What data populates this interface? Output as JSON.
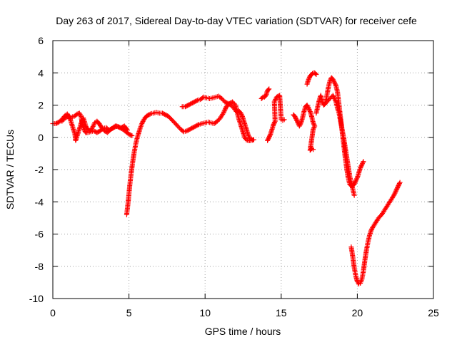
{
  "chart_data": {
    "type": "scatter",
    "title": "Day 263 of 2017, Sidereal Day-to-day VTEC variation (SDTVAR) for receiver cefe",
    "xlabel": "GPS time / hours",
    "ylabel": "SDTVAR / TECUs",
    "xlim": [
      0,
      25
    ],
    "ylim": [
      -10,
      6
    ],
    "xticks": [
      "0",
      "5",
      "10",
      "15",
      "20",
      "25"
    ],
    "yticks": [
      "-10",
      "-8",
      "-6",
      "-4",
      "-2",
      "0",
      "2",
      "4",
      "6"
    ],
    "grid": true,
    "marker": "+",
    "color": "#ff0000",
    "series": [
      {
        "points": [
          [
            0.0,
            0.85
          ],
          [
            0.2,
            0.85
          ],
          [
            0.4,
            0.95
          ],
          [
            0.6,
            1.1
          ],
          [
            0.8,
            1.35
          ],
          [
            0.95,
            1.45
          ],
          [
            1.05,
            1.3
          ],
          [
            1.15,
            1.1
          ],
          [
            1.25,
            0.8
          ],
          [
            1.35,
            0.5
          ],
          [
            1.45,
            0.2
          ],
          [
            1.5,
            -0.2
          ],
          [
            1.6,
            0.1
          ],
          [
            1.7,
            0.4
          ],
          [
            1.8,
            0.7
          ],
          [
            1.9,
            1.0
          ],
          [
            2.0,
            1.2
          ],
          [
            2.1,
            0.9
          ],
          [
            2.2,
            0.6
          ],
          [
            2.3,
            0.5
          ],
          [
            2.45,
            0.4
          ],
          [
            2.6,
            0.6
          ],
          [
            2.75,
            0.9
          ],
          [
            2.9,
            1.0
          ],
          [
            3.05,
            0.85
          ],
          [
            3.2,
            0.6
          ],
          [
            3.4,
            0.4
          ],
          [
            3.6,
            0.3
          ],
          [
            3.8,
            0.5
          ],
          [
            4.0,
            0.6
          ],
          [
            4.2,
            0.7
          ],
          [
            4.4,
            0.6
          ],
          [
            4.6,
            0.5
          ],
          [
            4.8,
            0.35
          ],
          [
            5.0,
            0.2
          ],
          [
            5.2,
            0.1
          ],
          [
            0.6,
            1.0
          ],
          [
            0.8,
            1.2
          ],
          [
            1.0,
            1.3
          ],
          [
            1.2,
            1.25
          ],
          [
            1.4,
            1.3
          ],
          [
            1.6,
            1.45
          ],
          [
            1.75,
            1.5
          ],
          [
            1.85,
            1.3
          ],
          [
            1.95,
            0.8
          ],
          [
            2.05,
            0.5
          ],
          [
            2.15,
            0.3
          ],
          [
            2.3,
            0.3
          ],
          [
            2.5,
            0.35
          ],
          [
            2.7,
            0.4
          ],
          [
            2.9,
            0.3
          ],
          [
            3.1,
            0.4
          ],
          [
            3.3,
            0.55
          ],
          [
            3.5,
            0.6
          ],
          [
            3.7,
            0.45
          ],
          [
            3.9,
            0.55
          ],
          [
            4.1,
            0.7
          ],
          [
            4.3,
            0.65
          ],
          [
            4.5,
            0.6
          ],
          [
            4.7,
            0.7
          ],
          [
            4.9,
            0.45
          ]
        ]
      },
      {
        "points": [
          [
            4.85,
            -4.8
          ],
          [
            4.95,
            -4.0
          ],
          [
            5.05,
            -3.0
          ],
          [
            5.15,
            -2.2
          ],
          [
            5.25,
            -1.5
          ],
          [
            5.35,
            -0.9
          ],
          [
            5.45,
            -0.4
          ],
          [
            5.55,
            0.0
          ],
          [
            5.65,
            0.3
          ],
          [
            5.75,
            0.6
          ],
          [
            5.85,
            0.85
          ],
          [
            5.95,
            1.05
          ],
          [
            6.05,
            1.2
          ],
          [
            6.2,
            1.35
          ],
          [
            6.4,
            1.45
          ],
          [
            6.6,
            1.5
          ],
          [
            6.8,
            1.55
          ],
          [
            7.0,
            1.5
          ],
          [
            7.2,
            1.5
          ],
          [
            7.4,
            1.4
          ],
          [
            7.6,
            1.3
          ],
          [
            7.8,
            1.1
          ],
          [
            8.0,
            0.9
          ],
          [
            8.2,
            0.7
          ],
          [
            8.4,
            0.5
          ],
          [
            8.6,
            0.35
          ],
          [
            8.8,
            0.4
          ],
          [
            9.0,
            0.5
          ],
          [
            9.2,
            0.6
          ],
          [
            9.4,
            0.7
          ],
          [
            9.6,
            0.8
          ],
          [
            9.8,
            0.85
          ],
          [
            10.0,
            0.9
          ],
          [
            10.2,
            0.95
          ],
          [
            10.4,
            0.9
          ],
          [
            10.6,
            0.85
          ],
          [
            10.8,
            1.0
          ],
          [
            11.0,
            1.2
          ],
          [
            11.2,
            1.5
          ],
          [
            11.4,
            1.9
          ],
          [
            11.6,
            2.1
          ],
          [
            11.8,
            2.2
          ],
          [
            12.0,
            2.0
          ],
          [
            12.1,
            1.6
          ],
          [
            12.2,
            1.2
          ],
          [
            12.3,
            0.9
          ],
          [
            12.4,
            0.6
          ],
          [
            12.5,
            0.3
          ],
          [
            12.6,
            0.0
          ],
          [
            12.7,
            -0.15
          ],
          [
            12.85,
            -0.2
          ],
          [
            13.0,
            -0.2
          ],
          [
            13.2,
            -0.15
          ]
        ]
      },
      {
        "points": [
          [
            8.5,
            1.9
          ],
          [
            8.7,
            1.9
          ],
          [
            8.9,
            2.0
          ],
          [
            9.1,
            2.1
          ],
          [
            9.3,
            2.2
          ],
          [
            9.5,
            2.3
          ],
          [
            9.7,
            2.35
          ],
          [
            9.9,
            2.5
          ],
          [
            10.1,
            2.45
          ],
          [
            10.3,
            2.4
          ],
          [
            10.5,
            2.45
          ],
          [
            10.7,
            2.5
          ],
          [
            10.9,
            2.55
          ],
          [
            11.1,
            2.4
          ],
          [
            11.3,
            2.2
          ],
          [
            11.5,
            2.1
          ],
          [
            11.7,
            2.0
          ],
          [
            11.9,
            1.8
          ],
          [
            12.05,
            1.6
          ],
          [
            12.2,
            1.65
          ],
          [
            12.35,
            1.5
          ],
          [
            12.45,
            1.3
          ],
          [
            12.55,
            1.0
          ],
          [
            12.65,
            0.7
          ],
          [
            12.75,
            0.4
          ],
          [
            12.85,
            0.1
          ],
          [
            12.95,
            -0.05
          ],
          [
            13.05,
            -0.1
          ],
          [
            13.15,
            -0.15
          ]
        ]
      },
      {
        "points": [
          [
            13.7,
            2.4
          ],
          [
            13.8,
            2.5
          ],
          [
            13.9,
            2.5
          ],
          [
            14.0,
            2.6
          ],
          [
            14.1,
            2.9
          ],
          [
            14.2,
            3.0
          ],
          [
            14.1,
            -0.2
          ],
          [
            14.2,
            0.0
          ],
          [
            14.3,
            0.2
          ],
          [
            14.4,
            0.5
          ],
          [
            14.5,
            0.8
          ],
          [
            14.6,
            1.0
          ],
          [
            14.55,
            2.2
          ],
          [
            14.7,
            2.5
          ],
          [
            14.9,
            2.6
          ],
          [
            15.0,
            1.1
          ],
          [
            15.1,
            1.05
          ],
          [
            15.2,
            1.1
          ]
        ]
      },
      {
        "points": [
          [
            15.8,
            1.4
          ],
          [
            15.9,
            1.3
          ],
          [
            16.0,
            1.1
          ],
          [
            16.1,
            0.9
          ],
          [
            16.2,
            0.7
          ],
          [
            16.3,
            0.9
          ],
          [
            16.4,
            1.2
          ],
          [
            16.5,
            1.6
          ],
          [
            16.6,
            1.9
          ],
          [
            16.7,
            2.0
          ],
          [
            16.8,
            1.8
          ],
          [
            16.9,
            1.6
          ],
          [
            17.0,
            1.3
          ],
          [
            17.1,
            0.9
          ],
          [
            17.2,
            0.7
          ],
          [
            17.1,
            0.5
          ],
          [
            16.9,
            -0.8
          ],
          [
            17.0,
            -0.7
          ],
          [
            17.1,
            -0.75
          ],
          [
            16.7,
            3.3
          ],
          [
            16.8,
            3.6
          ],
          [
            16.9,
            3.8
          ],
          [
            17.0,
            3.9
          ],
          [
            17.1,
            4.0
          ],
          [
            17.2,
            4.0
          ],
          [
            17.3,
            3.9
          ]
        ]
      },
      {
        "points": [
          [
            17.3,
            1.5
          ],
          [
            17.4,
            1.9
          ],
          [
            17.5,
            2.3
          ],
          [
            17.6,
            2.6
          ],
          [
            17.7,
            2.2
          ],
          [
            17.8,
            2.0
          ],
          [
            17.9,
            2.1
          ],
          [
            18.0,
            2.6
          ],
          [
            18.1,
            3.1
          ],
          [
            18.2,
            3.5
          ],
          [
            18.3,
            3.7
          ],
          [
            18.4,
            3.6
          ],
          [
            18.5,
            3.4
          ],
          [
            18.6,
            3.2
          ],
          [
            18.7,
            2.8
          ],
          [
            18.8,
            2.0
          ],
          [
            18.9,
            1.2
          ],
          [
            19.0,
            0.4
          ],
          [
            19.1,
            -0.4
          ],
          [
            19.2,
            -1.2
          ],
          [
            19.3,
            -1.9
          ],
          [
            19.4,
            -2.5
          ],
          [
            19.5,
            -2.9
          ],
          [
            19.6,
            -3.0
          ],
          [
            19.7,
            -3.0
          ],
          [
            19.8,
            -2.9
          ],
          [
            19.9,
            -2.7
          ],
          [
            20.0,
            -2.5
          ],
          [
            20.1,
            -2.2
          ],
          [
            20.2,
            -1.9
          ],
          [
            20.3,
            -1.7
          ],
          [
            20.4,
            -1.5
          ],
          [
            18.0,
            2.2
          ],
          [
            18.2,
            2.4
          ],
          [
            18.4,
            2.6
          ],
          [
            18.6,
            2.2
          ],
          [
            18.7,
            1.8
          ],
          [
            18.8,
            1.5
          ],
          [
            18.9,
            1.0
          ],
          [
            19.0,
            0.5
          ],
          [
            19.1,
            0.0
          ],
          [
            19.2,
            -0.6
          ],
          [
            19.3,
            -1.2
          ],
          [
            19.4,
            -1.8
          ],
          [
            19.5,
            -2.4
          ],
          [
            19.6,
            -2.8
          ],
          [
            19.7,
            -3.2
          ],
          [
            19.8,
            -3.6
          ]
        ]
      },
      {
        "points": [
          [
            19.6,
            -6.8
          ],
          [
            19.7,
            -7.4
          ],
          [
            19.8,
            -8.1
          ],
          [
            19.9,
            -8.6
          ],
          [
            20.0,
            -8.95
          ],
          [
            20.1,
            -9.1
          ],
          [
            20.2,
            -9.05
          ],
          [
            20.3,
            -8.8
          ],
          [
            20.4,
            -8.3
          ],
          [
            20.5,
            -7.6
          ],
          [
            20.6,
            -7.0
          ],
          [
            20.7,
            -6.5
          ],
          [
            20.8,
            -6.1
          ],
          [
            20.9,
            -5.8
          ],
          [
            21.0,
            -5.6
          ],
          [
            21.2,
            -5.3
          ],
          [
            21.4,
            -5.0
          ],
          [
            21.6,
            -4.8
          ],
          [
            21.8,
            -4.5
          ],
          [
            22.0,
            -4.2
          ],
          [
            22.2,
            -3.9
          ],
          [
            22.4,
            -3.6
          ],
          [
            22.6,
            -3.2
          ],
          [
            22.8,
            -2.8
          ]
        ]
      }
    ]
  }
}
